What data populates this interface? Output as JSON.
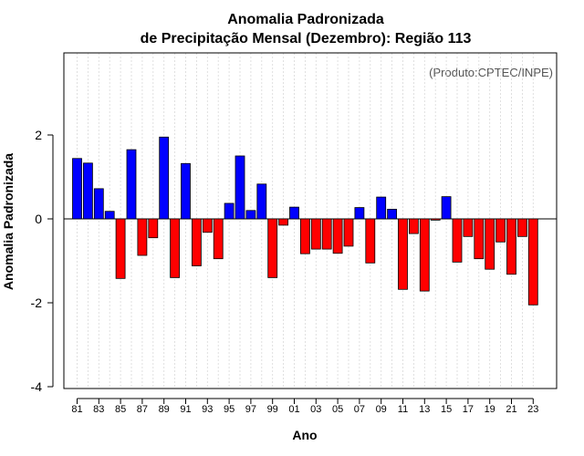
{
  "chart_data": {
    "type": "bar",
    "title": "Anomalia Padronizada",
    "subtitle": "de Precipitação Mensal (Dezembro): Região 113",
    "annotation": "(Produto:CPTEC/INPE)",
    "xlabel": "Ano",
    "ylabel": "Anomalia Padronizada",
    "ylim": [
      -4,
      4
    ],
    "yticks": [
      -4,
      -2,
      0,
      2
    ],
    "grid": true,
    "positive_color": "#0000ff",
    "negative_color": "#ff0000",
    "categories": [
      "81",
      "82",
      "83",
      "84",
      "85",
      "86",
      "87",
      "88",
      "89",
      "90",
      "91",
      "92",
      "93",
      "94",
      "95",
      "96",
      "97",
      "98",
      "99",
      "00",
      "01",
      "02",
      "03",
      "04",
      "05",
      "06",
      "07",
      "08",
      "09",
      "10",
      "11",
      "12",
      "13",
      "14",
      "15",
      "16",
      "17",
      "18",
      "19",
      "20",
      "21",
      "22",
      "23"
    ],
    "xtick_labels": [
      "81",
      "83",
      "85",
      "87",
      "89",
      "91",
      "93",
      "95",
      "97",
      "99",
      "01",
      "03",
      "05",
      "07",
      "09",
      "11",
      "13",
      "15",
      "17",
      "19",
      "21",
      "23"
    ],
    "values": [
      1.44,
      1.33,
      0.72,
      0.18,
      -1.42,
      1.65,
      -0.87,
      -0.45,
      1.95,
      -1.4,
      1.32,
      -1.12,
      -0.32,
      -0.95,
      0.37,
      1.5,
      0.2,
      0.83,
      -1.4,
      -0.15,
      0.28,
      -0.83,
      -0.72,
      -0.72,
      -0.82,
      -0.65,
      0.27,
      -1.05,
      0.52,
      0.23,
      -1.68,
      -0.35,
      -1.72,
      -0.03,
      0.53,
      -1.03,
      -0.42,
      -0.95,
      -1.2,
      -0.55,
      -1.32,
      -0.42,
      -2.05
    ]
  }
}
